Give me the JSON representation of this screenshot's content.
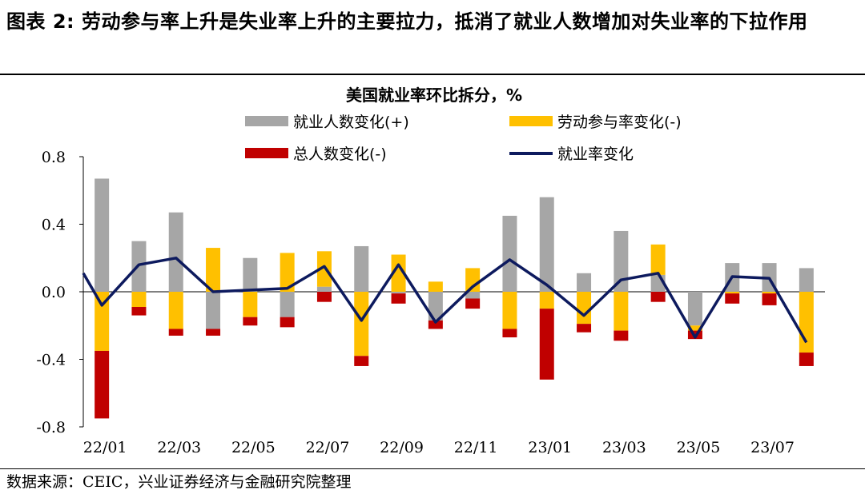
{
  "header": {
    "title": "图表 2: 劳动参与率上升是失业率上升的主要拉力，抵消了就业人数增加对失业率的下拉作用"
  },
  "footer": {
    "source": "数据来源：CEIC，兴业证券经济与金融研究院整理"
  },
  "colors": {
    "employment": "#a6a6a6",
    "participation": "#ffc000",
    "population": "#c00000",
    "rate": "#0d1a5e"
  },
  "chart_data": {
    "type": "bar",
    "title": "美国就业率环比拆分，%",
    "categories": [
      "22/01",
      "22/02",
      "22/03",
      "22/04",
      "22/05",
      "22/06",
      "22/07",
      "22/08",
      "22/09",
      "22/10",
      "22/11",
      "22/12",
      "23/01",
      "23/02",
      "23/03",
      "23/04",
      "23/05",
      "23/06",
      "23/07",
      "23/08"
    ],
    "x_tick_labels": [
      "22/01",
      "22/03",
      "22/05",
      "22/07",
      "22/09",
      "22/11",
      "23/01",
      "23/03",
      "23/05",
      "23/07"
    ],
    "y_tick_labels": [
      "0.8",
      "0.4",
      "0.0",
      "-0.4",
      "-0.8"
    ],
    "ylim": [
      -0.8,
      0.8
    ],
    "series": [
      {
        "name": "就业人数变化(+)",
        "kind": "bar",
        "values": [
          0.67,
          0.3,
          0.47,
          -0.22,
          0.2,
          -0.15,
          0.03,
          0.27,
          -0.01,
          -0.17,
          -0.04,
          0.45,
          0.56,
          0.11,
          0.36,
          0.1,
          -0.2,
          0.17,
          0.17,
          0.14
        ]
      },
      {
        "name": "劳动参与率变化(-)",
        "kind": "bar",
        "values": [
          -0.35,
          -0.09,
          -0.22,
          0.26,
          -0.15,
          0.23,
          0.21,
          -0.38,
          0.22,
          0.06,
          0.14,
          -0.22,
          -0.1,
          -0.19,
          -0.23,
          0.18,
          -0.03,
          -0.01,
          -0.01,
          -0.36
        ]
      },
      {
        "name": "总人数变化(-)",
        "kind": "bar",
        "values": [
          -0.4,
          -0.05,
          -0.04,
          -0.04,
          -0.05,
          -0.06,
          -0.06,
          -0.06,
          -0.06,
          -0.05,
          -0.06,
          -0.05,
          -0.42,
          -0.05,
          -0.06,
          -0.06,
          -0.05,
          -0.06,
          -0.07,
          -0.08
        ]
      },
      {
        "name": "就业率变化",
        "kind": "line",
        "values": [
          -0.08,
          0.16,
          0.2,
          0.0,
          0.01,
          0.02,
          0.15,
          -0.17,
          0.16,
          -0.18,
          0.03,
          0.19,
          0.04,
          -0.14,
          0.07,
          0.11,
          -0.27,
          0.09,
          0.08,
          -0.3
        ]
      }
    ]
  }
}
